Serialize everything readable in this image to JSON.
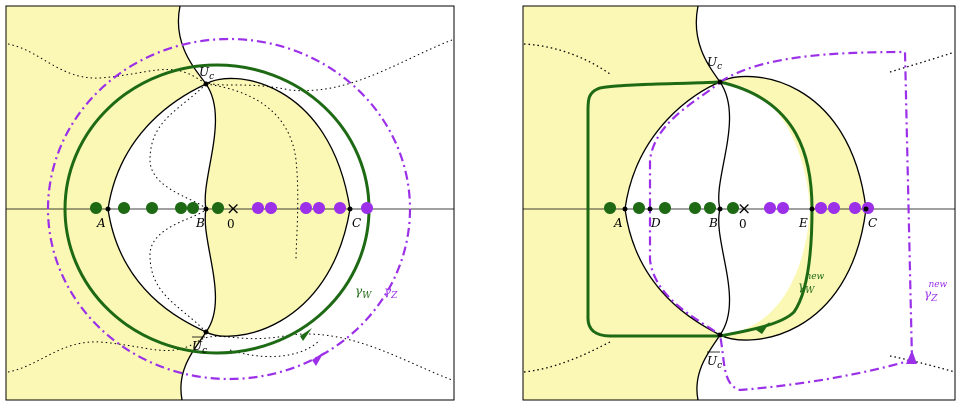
{
  "colors": {
    "region_fill": "#fbf8b6",
    "curve": "#000000",
    "gamma_w": "#1e6a14",
    "gamma_z": "#9b30e8",
    "dot_green": "#1e6a14",
    "dot_purple": "#9b30e8"
  },
  "panels": [
    {
      "labels": {
        "A": "A",
        "B": "B",
        "C": "C",
        "zero": "0",
        "x_mark": "×",
        "uc_top": "U",
        "uc_top_sub": "c",
        "uc_bot": "U",
        "uc_bot_sub": "c",
        "gamma_w": "γ",
        "gamma_w_sub": "W",
        "gamma_z": "γ",
        "gamma_z_sub": "Z"
      }
    },
    {
      "labels": {
        "A": "A",
        "B": "B",
        "C": "C",
        "D": "D",
        "E": "E",
        "zero": "0",
        "x_mark": "×",
        "uc_top": "U",
        "uc_top_sub": "c",
        "uc_bot": "U",
        "uc_bot_sub": "c",
        "gamma_w": "γ",
        "gamma_w_sub": "W",
        "gamma_w_sup": "new",
        "gamma_z": "γ",
        "gamma_z_sub": "Z",
        "gamma_z_sup": "new"
      }
    }
  ]
}
